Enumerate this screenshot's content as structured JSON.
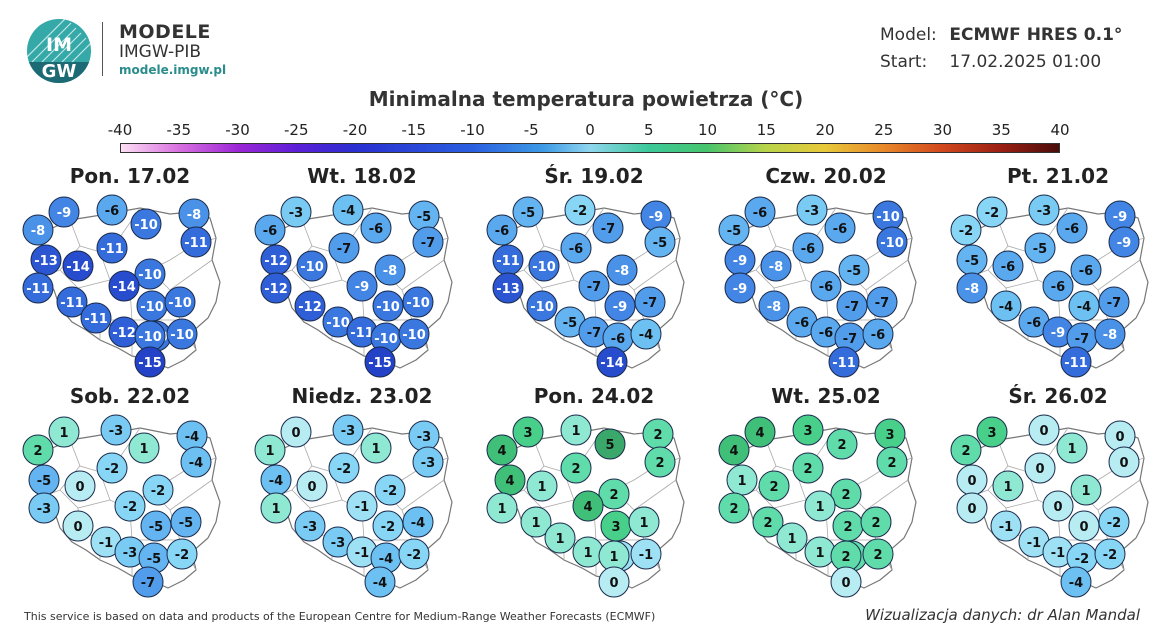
{
  "brand": {
    "logo_text_top": "IM",
    "logo_text_bottom": "GW",
    "title": "MODELE",
    "subtitle": "IMGW-PIB",
    "url": "modele.imgw.pl"
  },
  "model_info": {
    "model_label": "Model:",
    "model_value": "ECMWF HRES 0.1°",
    "start_label": "Start:",
    "start_value": "17.02.2025 01:00"
  },
  "map_title": "Minimalna temperatura powietrza (°C)",
  "scale": {
    "ticks": [
      "-40",
      "-35",
      "-30",
      "-25",
      "-20",
      "-15",
      "-10",
      "-5",
      "0",
      "5",
      "10",
      "15",
      "20",
      "25",
      "30",
      "35",
      "40"
    ]
  },
  "panels": [
    {
      "title": "Pon. 17.02",
      "values": [
        -8,
        -9,
        -6,
        -10,
        -8,
        -11,
        -13,
        -14,
        -11,
        -10,
        -11,
        -14,
        -11,
        -10,
        -10,
        -11,
        -10,
        -12,
        -10,
        -10,
        -15
      ]
    },
    {
      "title": "Wt. 18.02",
      "values": [
        -6,
        -3,
        -4,
        -6,
        -5,
        -7,
        -12,
        -10,
        -8,
        -7,
        -12,
        -9,
        -12,
        -10,
        -10,
        -10,
        -11,
        -10,
        -10,
        -15
      ]
    },
    {
      "title": "Śr. 19.02",
      "values": [
        -6,
        -5,
        -2,
        -7,
        -9,
        -6,
        -11,
        -10,
        -8,
        -5,
        -13,
        -7,
        -10,
        -9,
        -7,
        -5,
        -7,
        -6,
        -4,
        -14
      ]
    },
    {
      "title": "Czw. 20.02",
      "values": [
        -5,
        -6,
        -3,
        -6,
        -10,
        -6,
        -9,
        -8,
        -5,
        -10,
        -9,
        -6,
        -8,
        -7,
        -7,
        -6,
        -6,
        -7,
        -6,
        -11
      ]
    },
    {
      "title": "Pt. 21.02",
      "values": [
        -2,
        -2,
        -3,
        -6,
        -9,
        -5,
        -5,
        -6,
        -6,
        -9,
        -8,
        -6,
        -4,
        -4,
        -7,
        -6,
        -9,
        -7,
        -8,
        -11
      ]
    },
    {
      "title": "Sob. 22.02",
      "values": [
        2,
        1,
        -3,
        1,
        -4,
        -2,
        -5,
        0,
        -2,
        -4,
        -3,
        -2,
        0,
        -5,
        -5,
        -1,
        -3,
        -5,
        -2,
        -7
      ]
    },
    {
      "title": "Niedz. 23.02",
      "values": [
        1,
        0,
        -3,
        1,
        -3,
        -2,
        -4,
        0,
        -2,
        -3,
        1,
        -1,
        -3,
        -2,
        -4,
        -3,
        -1,
        -4,
        -2,
        -4
      ]
    },
    {
      "title": "Pon. 24.02",
      "values": [
        4,
        3,
        1,
        5,
        2,
        2,
        4,
        1,
        2,
        2,
        1,
        4,
        1,
        3,
        1,
        1,
        -1,
        1,
        -1,
        1,
        0
      ]
    },
    {
      "title": "Wt. 25.02",
      "values": [
        4,
        4,
        3,
        2,
        3,
        2,
        1,
        2,
        2,
        2,
        2,
        1,
        2,
        2,
        2,
        1,
        2,
        1,
        2,
        2,
        0
      ]
    },
    {
      "title": "Śr. 26.02",
      "values": [
        2,
        3,
        0,
        1,
        0,
        0,
        0,
        1,
        1,
        0,
        0,
        0,
        -1,
        0,
        -2,
        -1,
        -1,
        -2,
        -2,
        -4
      ]
    }
  ],
  "colors": {
    "legend_border": "#333333",
    "dot_border": "#1a2a4a"
  },
  "footer": {
    "left": "This service is based on data and products of the European Centre for Medium-Range Weather Forecasts (ECMWF)",
    "right": "Wizualizacja danych: dr Alan Mandal"
  }
}
